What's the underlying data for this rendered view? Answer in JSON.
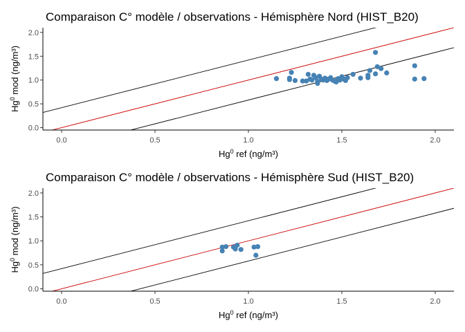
{
  "figure": {
    "background": "#ffffff"
  },
  "chart_data": [
    {
      "type": "scatter",
      "title": "Comparaison C° modèle / observations - Hémisphère Nord (HIST_B20)",
      "xlabel_base": "Hg",
      "xlabel_sup": "0",
      "xlabel_rest": " ref (ng/m³)",
      "ylabel_base": "Hg",
      "ylabel_sup": "0",
      "ylabel_rest": " mod (ng/m³)",
      "xlim": [
        -0.1,
        2.1
      ],
      "ylim": [
        -0.05,
        2.1
      ],
      "xticks": [
        0.0,
        0.5,
        1.0,
        1.5,
        2.0
      ],
      "xtick_labels": [
        "0.0",
        "0.5",
        "1.0",
        "1.5",
        "2.0"
      ],
      "yticks": [
        0.0,
        0.5,
        1.0,
        1.5,
        2.0
      ],
      "ytick_labels": [
        "0.0",
        "0.5",
        "1.0",
        "1.5",
        "2.0"
      ],
      "grid": false,
      "point_color": "#4682b4",
      "reference_lines": [
        {
          "role": "1:1",
          "intercept": 0.0,
          "slope": 1.0,
          "color": "#cc0000"
        },
        {
          "role": "upper",
          "intercept": 0.42,
          "slope": 1.0,
          "color": "#000000"
        },
        {
          "role": "lower",
          "intercept": -0.42,
          "slope": 1.0,
          "color": "#000000"
        }
      ],
      "points": [
        [
          1.15,
          1.03
        ],
        [
          1.22,
          1.04
        ],
        [
          1.22,
          1.01
        ],
        [
          1.23,
          1.16
        ],
        [
          1.25,
          0.99
        ],
        [
          1.29,
          0.98
        ],
        [
          1.31,
          0.98
        ],
        [
          1.32,
          1.12
        ],
        [
          1.33,
          1.02
        ],
        [
          1.34,
          1.0
        ],
        [
          1.35,
          1.1
        ],
        [
          1.36,
          1.05
        ],
        [
          1.37,
          0.97
        ],
        [
          1.37,
          0.93
        ],
        [
          1.38,
          1.08
        ],
        [
          1.39,
          1.02
        ],
        [
          1.4,
          1.0
        ],
        [
          1.41,
          1.04
        ],
        [
          1.42,
          0.99
        ],
        [
          1.43,
          1.02
        ],
        [
          1.44,
          1.05
        ],
        [
          1.45,
          1.0
        ],
        [
          1.46,
          0.98
        ],
        [
          1.47,
          0.96
        ],
        [
          1.48,
          1.03
        ],
        [
          1.49,
          1.0
        ],
        [
          1.5,
          1.07
        ],
        [
          1.51,
          1.02
        ],
        [
          1.52,
          0.99
        ],
        [
          1.53,
          1.05
        ],
        [
          1.56,
          1.12
        ],
        [
          1.6,
          1.04
        ],
        [
          1.64,
          1.1
        ],
        [
          1.64,
          1.05
        ],
        [
          1.65,
          1.2
        ],
        [
          1.68,
          1.58
        ],
        [
          1.68,
          1.13
        ],
        [
          1.69,
          1.28
        ],
        [
          1.71,
          1.24
        ],
        [
          1.74,
          1.15
        ],
        [
          1.89,
          1.3
        ],
        [
          1.89,
          1.02
        ],
        [
          1.94,
          1.03
        ]
      ]
    },
    {
      "type": "scatter",
      "title": "Comparaison C° modèle / observations - Hémisphère Sud (HIST_B20)",
      "xlabel_base": "Hg",
      "xlabel_sup": "0",
      "xlabel_rest": " ref (ng/m³)",
      "ylabel_base": "Hg",
      "ylabel_sup": "0",
      "ylabel_rest": " mod (ng/m³)",
      "xlim": [
        -0.1,
        2.1
      ],
      "ylim": [
        -0.05,
        2.1
      ],
      "xticks": [
        0.0,
        0.5,
        1.0,
        1.5,
        2.0
      ],
      "xtick_labels": [
        "0.0",
        "0.5",
        "1.0",
        "1.5",
        "2.0"
      ],
      "yticks": [
        0.0,
        0.5,
        1.0,
        1.5,
        2.0
      ],
      "ytick_labels": [
        "0.0",
        "0.5",
        "1.0",
        "1.5",
        "2.0"
      ],
      "grid": false,
      "point_color": "#4682b4",
      "reference_lines": [
        {
          "role": "1:1",
          "intercept": 0.0,
          "slope": 1.0,
          "color": "#cc0000"
        },
        {
          "role": "upper",
          "intercept": 0.42,
          "slope": 1.0,
          "color": "#000000"
        },
        {
          "role": "lower",
          "intercept": -0.42,
          "slope": 1.0,
          "color": "#000000"
        }
      ],
      "points": [
        [
          0.86,
          0.87
        ],
        [
          0.86,
          0.79
        ],
        [
          0.88,
          0.88
        ],
        [
          0.92,
          0.87
        ],
        [
          0.93,
          0.83
        ],
        [
          0.94,
          0.91
        ],
        [
          0.96,
          0.82
        ],
        [
          1.03,
          0.87
        ],
        [
          1.04,
          0.7
        ],
        [
          1.05,
          0.88
        ]
      ]
    }
  ]
}
